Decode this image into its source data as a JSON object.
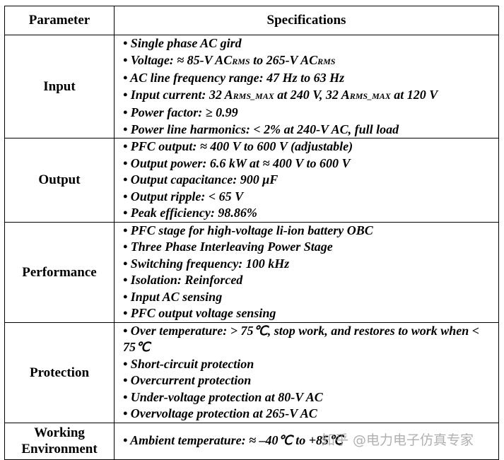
{
  "headers": [
    "Parameter",
    "Specifications"
  ],
  "rows": [
    {
      "param": "Input",
      "items": [
        [
          "• Single phase AC gird"
        ],
        [
          "• Voltage: ≈ 85-V AC",
          "RMS",
          " to 265-V AC",
          "RMS",
          ""
        ],
        [
          "• AC line frequency range: 47 Hz to 63 Hz"
        ],
        [
          "• Input current: 32 A",
          "RMS_MAX",
          " at 240 V, 32 A",
          "RMS_MAX",
          " at 120 V"
        ],
        [
          "• Power factor: ≥ 0.99"
        ],
        [
          "• Power line harmonics: < 2% at 240-V AC, full load"
        ]
      ]
    },
    {
      "param": "Output",
      "items": [
        [
          "• PFC output: ≈ 400 V to 600 V (adjustable)"
        ],
        [
          "• Output power: 6.6 kW at ≈ 400 V to 600 V"
        ],
        [
          "• Output capacitance: 900 μF"
        ],
        [
          "• Output ripple: < 65 V"
        ],
        [
          "• Peak efficiency: 98.86%"
        ]
      ]
    },
    {
      "param": "Performance",
      "items": [
        [
          "• PFC stage for high-voltage li-ion battery OBC"
        ],
        [
          "• Three Phase Interleaving Power Stage"
        ],
        [
          "• Switching frequency: 100 kHz"
        ],
        [
          "• Isolation: Reinforced"
        ],
        [
          "• Input AC sensing"
        ],
        [
          "• PFC output voltage sensing"
        ]
      ]
    },
    {
      "param": "Protection",
      "items": [
        [
          "• Over temperature: > 75℃, stop work, and restores to work when < 75℃"
        ],
        [
          "• Short-circuit protection"
        ],
        [
          "• Overcurrent protection"
        ],
        [
          "• Under-voltage protection at 80-V AC"
        ],
        [
          "• Overvoltage protection at 265-V AC"
        ]
      ]
    },
    {
      "param": "Working Environment",
      "items": [
        [
          "• Ambient temperature: ≈ –40℃ to +85℃"
        ]
      ]
    }
  ],
  "watermark": "知乎 @电力电子仿真专家"
}
